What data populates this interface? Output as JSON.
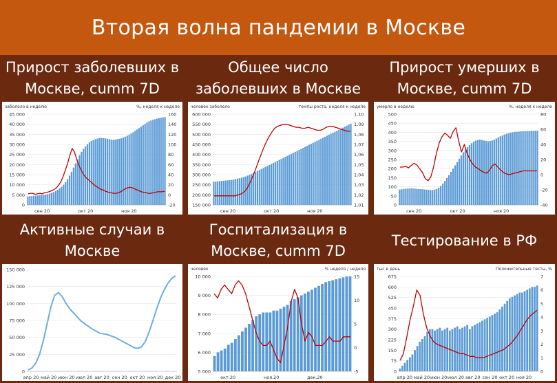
{
  "page_title": "Вторая волна пандемии в Москве",
  "colors": {
    "banner": "#c5580f",
    "background": "#6b2a10",
    "bar": "#5b9bd5",
    "line": "#c00000",
    "area_line": "#6aaee0"
  },
  "panels": [
    {
      "title": "Прирост заболевших в Москве, cumm 7D",
      "chart_data": {
        "type": "bar",
        "left_axis_label": "заболело в неделю",
        "right_axis_label": "%, неделя к неделе",
        "left_ticks": [
          "0",
          "5 000",
          "10 000",
          "15 000",
          "20 000",
          "25 000",
          "30 000",
          "35 000",
          "40 000",
          "45 000"
        ],
        "right_ticks": [
          "-20",
          "0",
          "20",
          "40",
          "60",
          "80",
          "100",
          "120",
          "140",
          "160"
        ],
        "x_ticks": [
          "сен 20",
          "окт 20",
          "ноя 20"
        ],
        "ylim": [
          0,
          45000
        ],
        "y2lim": [
          -20,
          160
        ],
        "bar_values": [
          4200,
          4300,
          4400,
          4500,
          4600,
          4700,
          4800,
          4900,
          5000,
          5200,
          5400,
          5700,
          6000,
          6400,
          6900,
          7500,
          8200,
          9000,
          10000,
          11300,
          12800,
          14500,
          16400,
          18500,
          20600,
          22700,
          24600,
          26300,
          27800,
          29000,
          30100,
          31000,
          31700,
          32200,
          32600,
          32900,
          33100,
          33200,
          33100,
          33000,
          32800,
          32600,
          32400,
          32300,
          32400,
          32600,
          32800,
          33000,
          33400,
          33800,
          34300,
          34800,
          35400,
          36000,
          36700,
          37400,
          38100,
          38800,
          39500,
          40200,
          40900,
          41400,
          41800,
          42200,
          42500,
          42800,
          43000,
          43200,
          43400,
          43600
        ],
        "line_values": [
          2,
          3,
          3,
          1,
          2,
          3,
          2,
          4,
          5,
          6,
          8,
          10,
          13,
          18,
          25,
          35,
          48,
          62,
          78,
          92,
          85,
          70,
          58,
          48,
          40,
          34,
          30,
          26,
          22,
          18,
          15,
          12,
          10,
          8,
          6,
          5,
          4,
          3,
          3,
          4,
          6,
          9,
          12,
          14,
          15,
          14,
          12,
          10,
          8,
          6,
          5,
          4,
          3,
          3,
          4,
          5,
          6,
          6,
          6,
          7
        ]
      }
    },
    {
      "title": "Общее число заболевших в Москве",
      "chart_data": {
        "type": "bar",
        "left_axis_label": "человек заболело",
        "right_axis_label": "темпы роста, неделя к неделе",
        "left_ticks": [
          "150 000",
          "200 000",
          "250 000",
          "300 000",
          "350 000",
          "400 000",
          "450 000",
          "500 000",
          "550 000",
          "600 000"
        ],
        "right_ticks": [
          "1,01",
          "1,02",
          "1,03",
          "1,04",
          "1,05",
          "1,06",
          "1,07",
          "1,08",
          "1,09",
          "1,10"
        ],
        "x_ticks": [
          "сен 20",
          "окт 20",
          "ноя 20"
        ],
        "ylim": [
          150000,
          600000
        ],
        "y2lim": [
          1.01,
          1.1
        ],
        "bar_values": [
          265000,
          266000,
          267000,
          268000,
          269000,
          270000,
          271000,
          272000,
          273000,
          274000,
          276000,
          278000,
          280000,
          282000,
          285000,
          288000,
          291000,
          295000,
          299000,
          303000,
          308000,
          313000,
          318000,
          323000,
          328000,
          333000,
          338000,
          343000,
          348000,
          353000,
          358000,
          363000,
          368000,
          373000,
          378000,
          383000,
          388000,
          393000,
          398000,
          403000,
          408000,
          413000,
          418000,
          423000,
          428000,
          433000,
          438000,
          443000,
          448000,
          453000,
          458000,
          463000,
          468000,
          473000,
          478000,
          483000,
          488000,
          493000,
          498000,
          503000,
          508000,
          513000,
          518000,
          523000,
          528000,
          533000,
          538000,
          543000,
          548000,
          553000
        ],
        "line_values": [
          1.019,
          1.019,
          1.019,
          1.019,
          1.019,
          1.019,
          1.019,
          1.019,
          1.02,
          1.021,
          1.023,
          1.027,
          1.033,
          1.04,
          1.048,
          1.056,
          1.064,
          1.071,
          1.077,
          1.082,
          1.086,
          1.088,
          1.089,
          1.09,
          1.09,
          1.089,
          1.088,
          1.087,
          1.087,
          1.086,
          1.086,
          1.087,
          1.086,
          1.085,
          1.084,
          1.084,
          1.085,
          1.087,
          1.088,
          1.088,
          1.087,
          1.086,
          1.085,
          1.084,
          1.083,
          1.083
        ]
      }
    },
    {
      "title": "Прирост умерших в Москве, cumm 7D",
      "chart_data": {
        "type": "bar",
        "left_axis_label": "умерло в неделю",
        "right_axis_label": "%, неделя к неделе",
        "left_ticks": [
          "0",
          "50",
          "100",
          "150",
          "200",
          "250",
          "300",
          "350",
          "400",
          "450",
          "500"
        ],
        "right_ticks": [
          "-40",
          "-20",
          "0",
          "20",
          "40",
          "60",
          "80"
        ],
        "x_ticks": [
          "сен 20",
          "окт 20",
          "ноя 20"
        ],
        "ylim": [
          0,
          500
        ],
        "y2lim": [
          -40,
          80
        ],
        "bar_values": [
          85,
          86,
          88,
          89,
          90,
          91,
          92,
          90,
          89,
          88,
          87,
          86,
          85,
          84,
          83,
          82,
          82,
          84,
          88,
          95,
          105,
          118,
          132,
          148,
          165,
          182,
          200,
          218,
          236,
          254,
          272,
          290,
          305,
          318,
          330,
          340,
          348,
          354,
          358,
          360,
          358,
          355,
          352,
          350,
          352,
          355,
          360,
          366,
          372,
          378,
          383,
          388,
          392,
          395,
          398,
          400,
          402,
          403,
          404,
          405,
          406,
          406,
          407,
          407,
          408,
          408,
          409,
          409
        ],
        "line_values": [
          10,
          10,
          11,
          9,
          12,
          15,
          13,
          8,
          3,
          -5,
          -8,
          -3,
          10,
          28,
          42,
          50,
          55,
          52,
          48,
          57,
          62,
          44,
          30,
          40,
          28,
          20,
          14,
          10,
          8,
          5,
          3,
          2,
          6,
          12,
          14,
          10,
          6,
          3,
          1,
          0,
          1,
          2,
          3,
          4,
          5,
          5,
          5,
          5,
          5,
          5
        ]
      }
    },
    {
      "title": "Активные случаи в Москве",
      "chart_data": {
        "type": "line",
        "left_ticks": [
          "0",
          "25 000",
          "50 000",
          "75 000",
          "100 000",
          "125 000",
          "150 000"
        ],
        "x_ticks": [
          "апр 20",
          "май 20",
          "июн 20",
          "июл 20",
          "авг 20",
          "сен 20",
          "окт 20",
          "ноя 20",
          "дек 20"
        ],
        "ylim": [
          0,
          150000
        ],
        "line_values": [
          2000,
          5000,
          12000,
          25000,
          45000,
          70000,
          95000,
          112000,
          116000,
          110000,
          100000,
          92000,
          86000,
          80000,
          74000,
          70000,
          66000,
          62000,
          59000,
          56000,
          55000,
          54000,
          52000,
          50000,
          47000,
          44000,
          41000,
          38000,
          35000,
          34000,
          36000,
          44000,
          58000,
          75000,
          92000,
          108000,
          120000,
          130000,
          137000,
          141000
        ]
      }
    },
    {
      "title": "Госпитализация в Москве, cumm 7D",
      "chart_data": {
        "type": "bar",
        "left_axis_label": "человек",
        "right_axis_label": "% неделя / неделя",
        "left_ticks": [
          "5 000",
          "6 000",
          "7 000",
          "8 000",
          "9 000",
          "10 000"
        ],
        "right_ticks": [
          "-5",
          "0",
          "5",
          "10",
          "15"
        ],
        "x_ticks": [
          "окт.20",
          "ноя.20",
          "дек.20"
        ],
        "ylim": [
          5000,
          10000
        ],
        "y2lim": [
          -5,
          17
        ],
        "bar_values": [
          5800,
          6000,
          6100,
          6200,
          6400,
          6500,
          6700,
          6900,
          7100,
          7300,
          7500,
          7700,
          7900,
          8000,
          8100,
          8100,
          8100,
          8200,
          8200,
          8300,
          8400,
          8500,
          8700,
          8800,
          8900,
          9000,
          9100,
          9200,
          9300,
          9400,
          9500,
          9600,
          9700,
          9750,
          9800,
          9850,
          9900,
          9950,
          10000,
          10000
        ],
        "line_values": [
          13,
          12,
          14,
          15,
          14,
          13,
          15,
          16,
          15,
          13,
          10,
          7,
          4,
          2,
          1,
          1,
          2,
          0,
          -2,
          -3,
          1,
          5,
          11,
          14,
          12,
          6,
          2,
          4,
          3,
          1,
          1,
          1,
          2,
          3,
          2,
          2,
          2,
          3,
          3,
          3
        ]
      }
    },
    {
      "title": "Тестирование в РФ",
      "chart_data": {
        "type": "bar",
        "left_axis_label": "тыс в день",
        "right_axis_label": "Положительные тесты, %",
        "left_ticks": [
          "0",
          "75",
          "150",
          "225",
          "300",
          "375",
          "450",
          "525",
          "600",
          "675"
        ],
        "right_ticks": [
          "0",
          "1",
          "2",
          "3",
          "4",
          "5",
          "6",
          "7"
        ],
        "x_ticks": [
          "апр 20",
          "май 20",
          "июн 20",
          "июл 20",
          "авг 20",
          "сен 20",
          "окт 20",
          "ноя 20"
        ],
        "ylim": [
          0,
          675
        ],
        "y2lim": [
          0,
          7
        ],
        "bar_values": [
          20,
          40,
          60,
          80,
          100,
          120,
          150,
          180,
          210,
          230,
          250,
          280,
          300,
          300,
          290,
          300,
          310,
          290,
          300,
          310,
          290,
          300,
          310,
          320,
          300,
          310,
          320,
          330,
          300,
          320,
          330,
          340,
          350,
          360,
          370,
          380,
          390,
          400,
          410,
          420,
          440,
          460,
          480,
          500,
          520,
          530,
          540,
          550,
          560,
          560,
          570,
          580,
          590,
          600,
          600,
          610
        ],
        "line_values": [
          0.8,
          1.3,
          2.5,
          3.8,
          4.8,
          6.0,
          5.6,
          4.2,
          3.2,
          2.6,
          2.2,
          2.0,
          1.9,
          1.8,
          1.7,
          1.6,
          1.5,
          1.4,
          1.3,
          1.3,
          1.2,
          1.1,
          1.1,
          1.0,
          1.0,
          1.0,
          1.1,
          1.2,
          1.3,
          1.4,
          1.5,
          1.6,
          1.8,
          2.0,
          2.3,
          2.6,
          3.0,
          3.4,
          3.8,
          4.1,
          4.3,
          4.5
        ]
      }
    }
  ]
}
